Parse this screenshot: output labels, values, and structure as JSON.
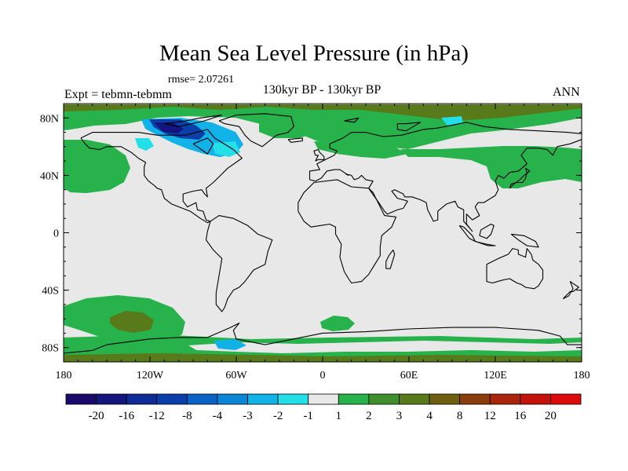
{
  "title": "Mean Sea Level Pressure (in hPa)",
  "rmse_label": "rmse= 2.07261",
  "expt_label": "Expt = tebmn-tebmm",
  "subtitle": "130kyr BP - 130kyr BP",
  "season": "ANN",
  "x_ticks": [
    {
      "lon": -180,
      "label": "180"
    },
    {
      "lon": -120,
      "label": "120W"
    },
    {
      "lon": -60,
      "label": "60W"
    },
    {
      "lon": 0,
      "label": "0"
    },
    {
      "lon": 60,
      "label": "60E"
    },
    {
      "lon": 120,
      "label": "120E"
    },
    {
      "lon": 180,
      "label": "180"
    }
  ],
  "y_ticks": [
    {
      "lat": 80,
      "label": "80N"
    },
    {
      "lat": 40,
      "label": "40N"
    },
    {
      "lat": 0,
      "label": "0"
    },
    {
      "lat": -40,
      "label": "40S"
    },
    {
      "lat": -80,
      "label": "80S"
    }
  ],
  "lon_range": [
    -180,
    180
  ],
  "lat_range": [
    -90,
    90
  ],
  "colorbar": {
    "labels": [
      "-20",
      "-16",
      "-12",
      "-8",
      "-4",
      "-3",
      "-2",
      "-1",
      "1",
      "2",
      "3",
      "4",
      "8",
      "12",
      "16",
      "20"
    ],
    "colors": [
      "#1c0a6a",
      "#15157f",
      "#0e2b96",
      "#0a3ea8",
      "#0a62c6",
      "#0b86d6",
      "#10b2e8",
      "#22dfe8",
      "#e8e8e8",
      "#27b24c",
      "#3f8f2c",
      "#597a1a",
      "#6e5e10",
      "#8a3d0b",
      "#a8240a",
      "#c3120a",
      "#dc0a0a"
    ]
  },
  "region_colors": {
    "neutral": "#e8e8e8",
    "green": "#27b24c",
    "olive": "#597a1a",
    "cyan": "#22dfe8",
    "lightblue": "#10b2e8",
    "blue": "#0a3ea8",
    "navy": "#15157f"
  }
}
